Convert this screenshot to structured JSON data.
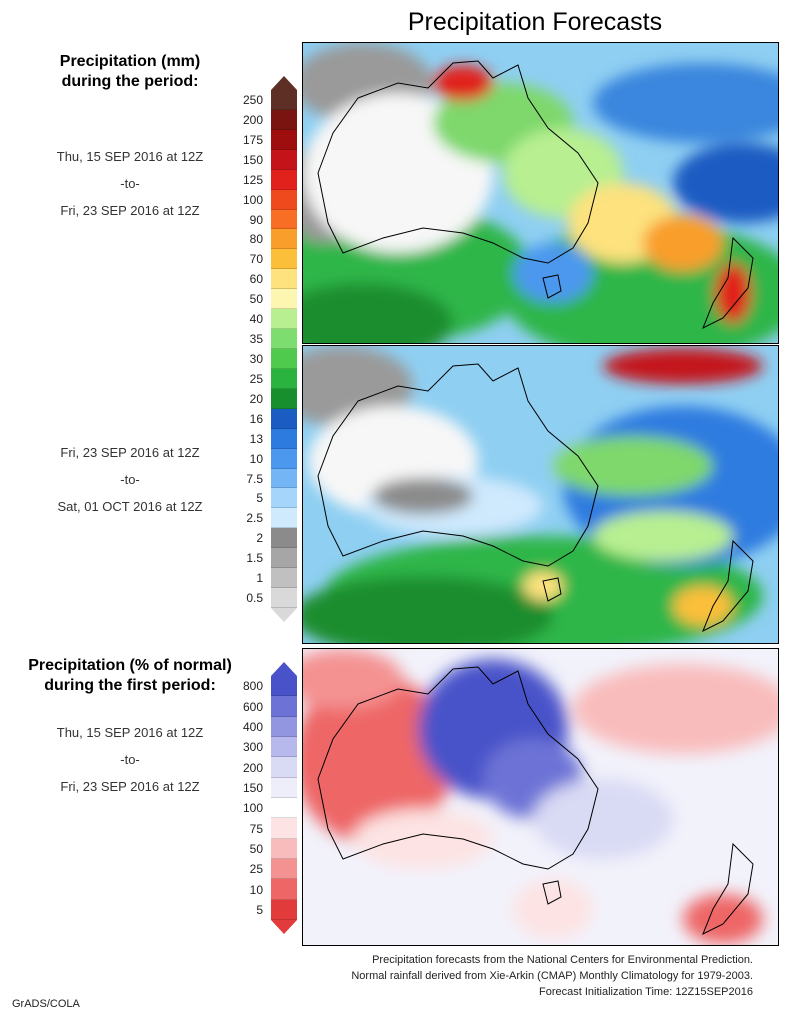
{
  "title": "Precipitation Forecasts",
  "section1": {
    "heading_line1": "Precipitation (mm)",
    "heading_line2": "during the period:",
    "period1": [
      "Thu, 15 SEP 2016 at 12Z",
      "-to-",
      "Fri, 23 SEP 2016 at 12Z"
    ],
    "period2": [
      "Fri, 23 SEP 2016 at 12Z",
      "-to-",
      "Sat, 01 OCT 2016 at 12Z"
    ],
    "colorbar_labels": [
      "250",
      "200",
      "175",
      "150",
      "125",
      "100",
      "90",
      "80",
      "70",
      "60",
      "50",
      "40",
      "35",
      "30",
      "25",
      "20",
      "16",
      "13",
      "10",
      "7.5",
      "5",
      "2.5",
      "2",
      "1.5",
      "1",
      "0.5"
    ],
    "colorbar_colors": [
      "#5e2f24",
      "#7a1410",
      "#9e0e0e",
      "#c4141a",
      "#e1221c",
      "#ef4a1e",
      "#f86e24",
      "#f99e2a",
      "#fbbf3a",
      "#fde27e",
      "#fdf6b0",
      "#b7ef91",
      "#7edd6f",
      "#4fca4c",
      "#2ab33e",
      "#168f2c",
      "#1b5cc2",
      "#2e7be0",
      "#4b98ee",
      "#74b6f5",
      "#a5d5fb",
      "#cfe9fd",
      "#8b8b8b",
      "#a6a6a6",
      "#c0c0c0",
      "#d9d9d9"
    ]
  },
  "section2": {
    "heading_line1": "Precipitation (% of normal)",
    "heading_line2": "during the first period:",
    "period": [
      "Thu, 15 SEP 2016 at 12Z",
      "-to-",
      "Fri, 23 SEP 2016 at 12Z"
    ],
    "colorbar_labels": [
      "800",
      "600",
      "400",
      "300",
      "200",
      "150",
      "100",
      "75",
      "50",
      "25",
      "10",
      "5"
    ],
    "colorbar_colors": [
      "#4a52c9",
      "#6d73d6",
      "#9296e1",
      "#b7b9ec",
      "#d9daf4",
      "#eeeefa",
      "#ffffff",
      "#fde3e3",
      "#f9bcbc",
      "#f49292",
      "#ee6666",
      "#e23b3b"
    ]
  },
  "footer": {
    "line1": "Precipitation forecasts from the National Centers for Environmental Prediction.",
    "line2": "Normal rainfall derived from Xie-Arkin (CMAP) Monthly Climatology for 1979-2003.",
    "line3": "Forecast Initialization Time: 12Z15SEP2016"
  },
  "credit": "GrADS/COLA"
}
